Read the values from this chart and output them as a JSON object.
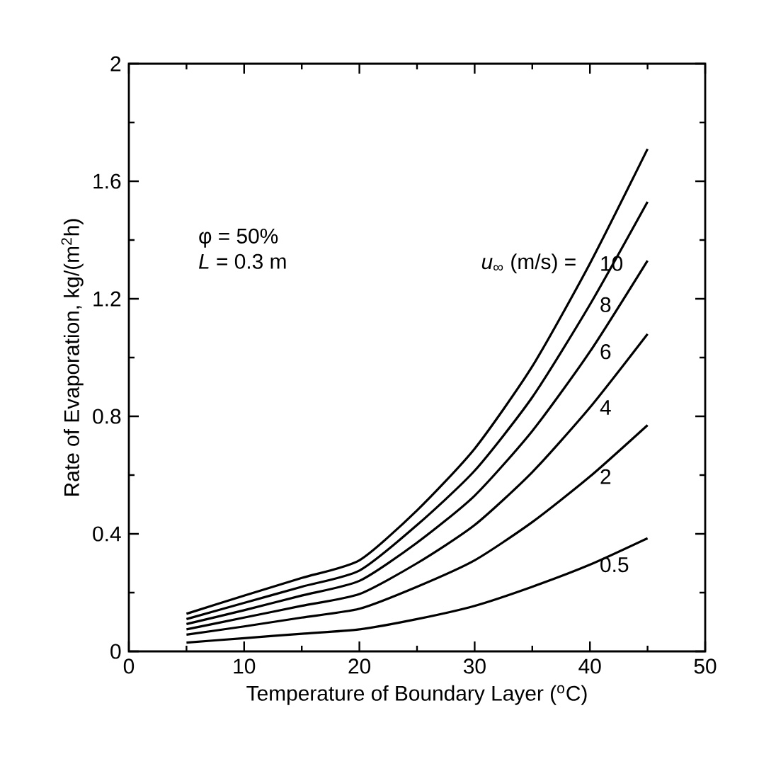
{
  "chart_data": {
    "type": "line",
    "xlabel": "Temperature of Boundary Layer ($^{o}$C)",
    "ylabel": "Rate of Evaporation, kg/(m$^{2}$h)",
    "x": [
      5,
      10,
      15,
      20,
      25,
      30,
      35,
      40,
      45
    ],
    "series": [
      {
        "name": "10",
        "color": "#000000",
        "values": [
          0.128,
          0.19,
          0.25,
          0.31,
          0.48,
          0.69,
          0.97,
          1.32,
          1.71
        ]
      },
      {
        "name": "8",
        "color": "#000000",
        "values": [
          0.11,
          0.165,
          0.22,
          0.275,
          0.43,
          0.615,
          0.865,
          1.18,
          1.53
        ]
      },
      {
        "name": "6",
        "color": "#000000",
        "values": [
          0.093,
          0.14,
          0.19,
          0.24,
          0.37,
          0.53,
          0.75,
          1.02,
          1.33
        ]
      },
      {
        "name": "4",
        "color": "#000000",
        "values": [
          0.075,
          0.115,
          0.155,
          0.195,
          0.3,
          0.43,
          0.61,
          0.83,
          1.08
        ]
      },
      {
        "name": "2",
        "color": "#000000",
        "values": [
          0.057,
          0.085,
          0.115,
          0.145,
          0.22,
          0.31,
          0.44,
          0.595,
          0.77
        ]
      },
      {
        "name": "0.5",
        "color": "#000000",
        "values": [
          0.03,
          0.045,
          0.06,
          0.075,
          0.11,
          0.155,
          0.22,
          0.295,
          0.385
        ]
      }
    ],
    "annotations": [
      "φ = 50%",
      "*L* = 0.3 m",
      "*u*$_{∞}$ (m/s) ="
    ],
    "xlim": [
      0,
      50
    ],
    "ylim": [
      0,
      2
    ],
    "xticks": [
      0,
      10,
      20,
      30,
      40,
      50
    ],
    "yticks": [
      0,
      0.4,
      0.8,
      1.2,
      1.6,
      2
    ],
    "grid": false,
    "legend": false,
    "marker": "none",
    "line_style": "solid"
  }
}
